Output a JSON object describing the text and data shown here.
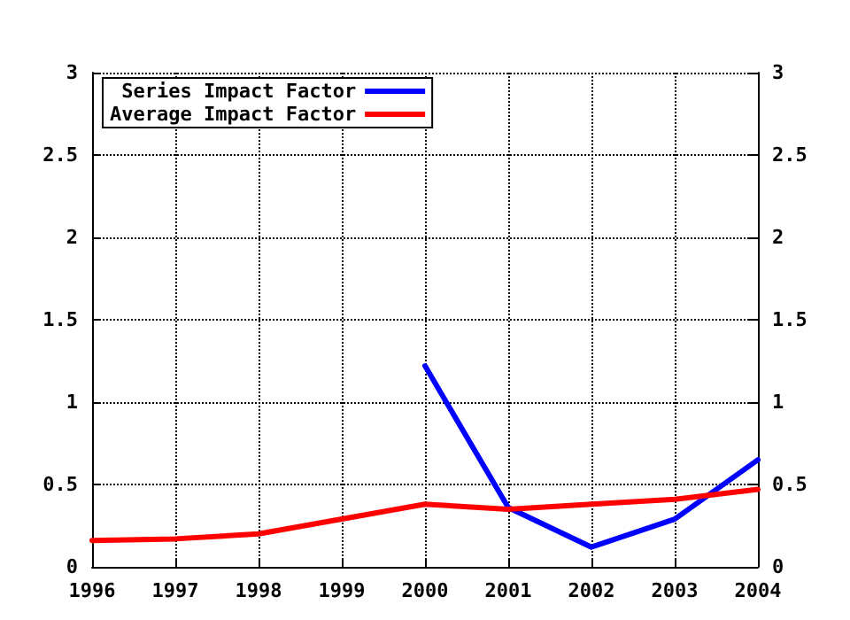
{
  "chart_data": {
    "type": "line",
    "x": [
      1996,
      1997,
      1998,
      1999,
      2000,
      2001,
      2002,
      2003,
      2004
    ],
    "series": [
      {
        "name": "Series Impact Factor",
        "color": "#0000ff",
        "values": [
          null,
          null,
          null,
          null,
          1.22,
          0.36,
          0.12,
          0.29,
          0.65
        ]
      },
      {
        "name": "Average Impact Factor",
        "color": "#ff0000",
        "values": [
          0.16,
          0.17,
          0.2,
          0.29,
          0.38,
          0.35,
          0.38,
          0.41,
          0.47
        ]
      }
    ],
    "xlim": [
      1996,
      2004
    ],
    "xticks": [
      1996,
      1997,
      1998,
      1999,
      2000,
      2001,
      2002,
      2003,
      2004
    ],
    "ylim": [
      0,
      3
    ],
    "yticks": [
      0,
      0.5,
      1,
      1.5,
      2,
      2.5,
      3
    ],
    "y2lim": [
      0,
      3
    ],
    "y2ticks": [
      0,
      0.5,
      1,
      1.5,
      2,
      2.5,
      3
    ],
    "grid": true,
    "legend": "top left",
    "marker": "none",
    "line_style": "solid"
  }
}
